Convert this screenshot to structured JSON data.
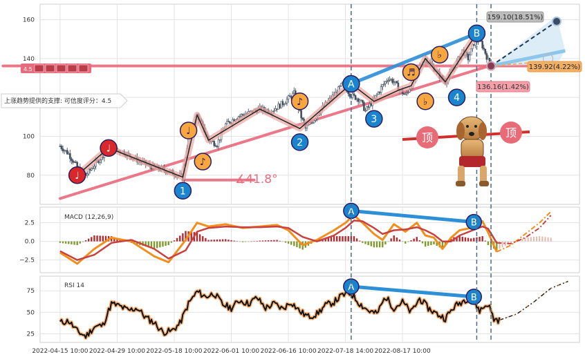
{
  "chart_data": [
    {
      "type": "candlestick",
      "panel": "price",
      "ylim": [
        65,
        168
      ],
      "yticks": [
        80,
        100,
        120,
        140,
        160
      ],
      "ytick_labels": [
        "80",
        "100",
        "",
        "140",
        "160"
      ],
      "grid": true,
      "close_series": [
        [
          0,
          95
        ],
        [
          3,
          91
        ],
        [
          6,
          84
        ],
        [
          9,
          80
        ],
        [
          13,
          87
        ],
        [
          17,
          94
        ],
        [
          22,
          92
        ],
        [
          28,
          87
        ],
        [
          33,
          84
        ],
        [
          38,
          82
        ],
        [
          43,
          79
        ],
        [
          45,
          100
        ],
        [
          48,
          111
        ],
        [
          50,
          105
        ],
        [
          52,
          98
        ],
        [
          55,
          96
        ],
        [
          58,
          106
        ],
        [
          62,
          110
        ],
        [
          66,
          112
        ],
        [
          70,
          114
        ],
        [
          74,
          113
        ],
        [
          78,
          117
        ],
        [
          82,
          122
        ],
        [
          84,
          112
        ],
        [
          86,
          104
        ],
        [
          88,
          107
        ],
        [
          91,
          113
        ],
        [
          94,
          118
        ],
        [
          97,
          123
        ],
        [
          99,
          127
        ],
        [
          102,
          121
        ],
        [
          105,
          119
        ],
        [
          107,
          113
        ],
        [
          110,
          119
        ],
        [
          113,
          126
        ],
        [
          115,
          130
        ],
        [
          117,
          128
        ],
        [
          119,
          124
        ],
        [
          121,
          121
        ],
        [
          123,
          126
        ],
        [
          126,
          136
        ],
        [
          128,
          140
        ],
        [
          130,
          137
        ],
        [
          133,
          131
        ],
        [
          135,
          128
        ],
        [
          137,
          133
        ],
        [
          139,
          138
        ],
        [
          141,
          144
        ],
        [
          143,
          140
        ],
        [
          145,
          148
        ],
        [
          147,
          150
        ],
        [
          149,
          143
        ],
        [
          150,
          139
        ],
        [
          151,
          137
        ]
      ],
      "trendlines": [
        {
          "name": "support",
          "color": "#e96a7c",
          "points": [
            [
              0,
              68
            ],
            [
              151,
              136.5
            ]
          ]
        },
        {
          "name": "resistance",
          "color": "#e96a7c",
          "points": [
            [
              -20,
              136.2
            ],
            [
              175,
              136.2
            ]
          ]
        },
        {
          "name": "upper-channel",
          "color": "#2d8fd6",
          "points": [
            [
              102,
              127
            ],
            [
              146,
              153
            ]
          ]
        },
        {
          "name": "angle-base",
          "color": "#e96a7c",
          "points": [
            [
              43,
              77.5
            ],
            [
              68,
              77.5
            ]
          ]
        }
      ],
      "wave_path": [
        [
          6,
          80
        ],
        [
          17,
          94
        ],
        [
          43,
          79
        ],
        [
          48,
          111
        ],
        [
          52,
          98
        ],
        [
          70,
          114
        ],
        [
          84,
          104
        ],
        [
          102,
          127
        ],
        [
          110,
          118
        ],
        [
          119,
          124
        ],
        [
          123,
          126
        ],
        [
          128,
          140
        ],
        [
          135,
          128
        ],
        [
          146,
          153
        ]
      ],
      "projections": [
        {
          "label": "159.10(18.51%)",
          "value": 159.1,
          "pct": "18.51%"
        },
        {
          "label": "139.92(4.22%)",
          "value": 139.92,
          "pct": "4.22%"
        },
        {
          "label": "136.16(1.42%)",
          "value": 136.16,
          "pct": "1.42%"
        }
      ],
      "angle_label": "∡41.8°",
      "support_label": "上涨趋势提供的支撑: 可信度评分：4.5",
      "resistance_tag": "4.5",
      "top_label": "顶",
      "markers": [
        {
          "text": "♩",
          "kind": "note-red",
          "x": 6,
          "y": 80
        },
        {
          "text": "♩",
          "kind": "note-red",
          "x": 17,
          "y": 94
        },
        {
          "text": "1",
          "kind": "wave-blue",
          "x": 43,
          "y": 72
        },
        {
          "text": "♩",
          "kind": "note-orange",
          "x": 45,
          "y": 103
        },
        {
          "text": "♪",
          "kind": "note-orange",
          "x": 50,
          "y": 87
        },
        {
          "text": "2",
          "kind": "wave-blue",
          "x": 84,
          "y": 97
        },
        {
          "text": "♪",
          "kind": "note-orange",
          "x": 84,
          "y": 118
        },
        {
          "text": "A",
          "kind": "wave-blue",
          "x": 102,
          "y": 127
        },
        {
          "text": "3",
          "kind": "wave-blue",
          "x": 110,
          "y": 109
        },
        {
          "text": "♬",
          "kind": "note-orange",
          "x": 123,
          "y": 133
        },
        {
          "text": "♭",
          "kind": "note-orange",
          "x": 128,
          "y": 118
        },
        {
          "text": "♭",
          "kind": "note-orange",
          "x": 133,
          "y": 142
        },
        {
          "text": "4",
          "kind": "wave-blue",
          "x": 139,
          "y": 120
        },
        {
          "text": "B",
          "kind": "wave-blue",
          "x": 146,
          "y": 153
        }
      ]
    },
    {
      "type": "line",
      "panel": "macd",
      "title": "MACD (12,26,9)",
      "ylim": [
        -4.2,
        4.6
      ],
      "yticks": [
        2.5,
        0.0,
        -2.5
      ],
      "ytick_labels": [
        "2.5",
        "0.0",
        "−2.5"
      ],
      "series": [
        {
          "name": "macd",
          "color": "#f28e1c",
          "values": [
            [
              0,
              -1.5
            ],
            [
              6,
              -3
            ],
            [
              12,
              -1
            ],
            [
              18,
              0.5
            ],
            [
              25,
              0
            ],
            [
              33,
              -2
            ],
            [
              38,
              -2.8
            ],
            [
              44,
              0.2
            ],
            [
              48,
              2.5
            ],
            [
              52,
              2
            ],
            [
              58,
              2.3
            ],
            [
              64,
              1.8
            ],
            [
              70,
              2
            ],
            [
              76,
              2.2
            ],
            [
              80,
              1.5
            ],
            [
              85,
              -0.5
            ],
            [
              90,
              0.2
            ],
            [
              96,
              1.5
            ],
            [
              100,
              2.5
            ],
            [
              103,
              3.5
            ],
            [
              106,
              2.5
            ],
            [
              110,
              1
            ],
            [
              113,
              0.2
            ],
            [
              117,
              2.3
            ],
            [
              121,
              1.3
            ],
            [
              125,
              2.5
            ],
            [
              128,
              0.8
            ],
            [
              131,
              0.5
            ],
            [
              134,
              -1
            ],
            [
              137,
              0.5
            ],
            [
              140,
              1.5
            ],
            [
              144,
              1.8
            ],
            [
              148,
              2.7
            ],
            [
              150,
              1.2
            ],
            [
              153,
              -1.4
            ]
          ]
        },
        {
          "name": "signal",
          "color": "#c8413f",
          "values": [
            [
              0,
              -1.3
            ],
            [
              6,
              -2.5
            ],
            [
              12,
              -1.8
            ],
            [
              18,
              -0.2
            ],
            [
              25,
              0.2
            ],
            [
              33,
              -1
            ],
            [
              38,
              -2.3
            ],
            [
              44,
              -1.2
            ],
            [
              48,
              1.3
            ],
            [
              52,
              1.8
            ],
            [
              58,
              2
            ],
            [
              64,
              1.9
            ],
            [
              70,
              1.9
            ],
            [
              76,
              2
            ],
            [
              80,
              1.8
            ],
            [
              85,
              0.6
            ],
            [
              90,
              0
            ],
            [
              96,
              0.8
            ],
            [
              100,
              1.8
            ],
            [
              103,
              2.8
            ],
            [
              106,
              2.7
            ],
            [
              110,
              1.8
            ],
            [
              113,
              1
            ],
            [
              117,
              1.5
            ],
            [
              121,
              1.6
            ],
            [
              125,
              1.9
            ],
            [
              128,
              1.5
            ],
            [
              131,
              0.9
            ],
            [
              134,
              0
            ],
            [
              137,
              0
            ],
            [
              140,
              0.8
            ],
            [
              144,
              1.4
            ],
            [
              148,
              2
            ],
            [
              150,
              1.7
            ],
            [
              153,
              -0.2
            ]
          ]
        }
      ],
      "projection_macd": [
        [
          153,
          -1.4
        ],
        [
          158,
          -0.5
        ],
        [
          163,
          1
        ],
        [
          168,
          2.5
        ],
        [
          172,
          4
        ]
      ],
      "projection_signal": [
        [
          153,
          -0.2
        ],
        [
          158,
          -0.3
        ],
        [
          163,
          0.5
        ],
        [
          168,
          1.8
        ],
        [
          172,
          3.5
        ]
      ],
      "divergence": {
        "points": [
          [
            102,
            4.1
          ],
          [
            145,
            2.6
          ]
        ],
        "labels": [
          "A",
          "B"
        ]
      }
    },
    {
      "type": "line",
      "panel": "rsi",
      "title": "RSI 14",
      "ylim": [
        15,
        92
      ],
      "yticks": [
        75,
        50,
        25
      ],
      "ytick_labels": [
        "75",
        "50",
        "25"
      ],
      "series": [
        {
          "name": "rsi",
          "color": "#111111",
          "values": [
            [
              0,
              38
            ],
            [
              3,
              40
            ],
            [
              6,
              28
            ],
            [
              9,
              22
            ],
            [
              12,
              33
            ],
            [
              15,
              35
            ],
            [
              18,
              60
            ],
            [
              21,
              57
            ],
            [
              24,
              52
            ],
            [
              27,
              55
            ],
            [
              30,
              44
            ],
            [
              33,
              38
            ],
            [
              36,
              27
            ],
            [
              39,
              28
            ],
            [
              42,
              37
            ],
            [
              45,
              60
            ],
            [
              48,
              74
            ],
            [
              51,
              68
            ],
            [
              54,
              72
            ],
            [
              57,
              59
            ],
            [
              60,
              55
            ],
            [
              63,
              64
            ],
            [
              66,
              60
            ],
            [
              69,
              67
            ],
            [
              72,
              55
            ],
            [
              75,
              60
            ],
            [
              78,
              54
            ],
            [
              81,
              62
            ],
            [
              84,
              51
            ],
            [
              87,
              45
            ],
            [
              90,
              48
            ],
            [
              93,
              58
            ],
            [
              96,
              62
            ],
            [
              99,
              70
            ],
            [
              102,
              72
            ],
            [
              105,
              60
            ],
            [
              108,
              52
            ],
            [
              111,
              48
            ],
            [
              114,
              68
            ],
            [
              117,
              55
            ],
            [
              120,
              62
            ],
            [
              123,
              50
            ],
            [
              126,
              66
            ],
            [
              129,
              55
            ],
            [
              132,
              48
            ],
            [
              135,
              43
            ],
            [
              138,
              56
            ],
            [
              141,
              63
            ],
            [
              144,
              68
            ],
            [
              147,
              52
            ],
            [
              150,
              60
            ],
            [
              152,
              42
            ],
            [
              154,
              41
            ]
          ]
        }
      ],
      "projection": [
        [
          154,
          41
        ],
        [
          160,
          48
        ],
        [
          166,
          62
        ],
        [
          172,
          78
        ],
        [
          178,
          86
        ]
      ],
      "divergence": {
        "points": [
          [
            102,
            80
          ],
          [
            145,
            68
          ]
        ],
        "labels": [
          "A",
          "B"
        ]
      }
    }
  ],
  "x_axis": {
    "tick_labels": [
      "2022-04-15 10:00",
      "2022-04-29 10:00",
      "2022-05-18 10:00",
      "2022-06-01 10:00",
      "2022-06-16 10:00",
      "2022-07-18 14:00",
      "2022-08-17 10:00"
    ],
    "tick_bars": [
      0,
      20,
      40,
      60,
      80,
      100,
      120
    ],
    "range_bars": [
      -7,
      182
    ],
    "vlines": [
      102,
      146,
      151
    ]
  }
}
